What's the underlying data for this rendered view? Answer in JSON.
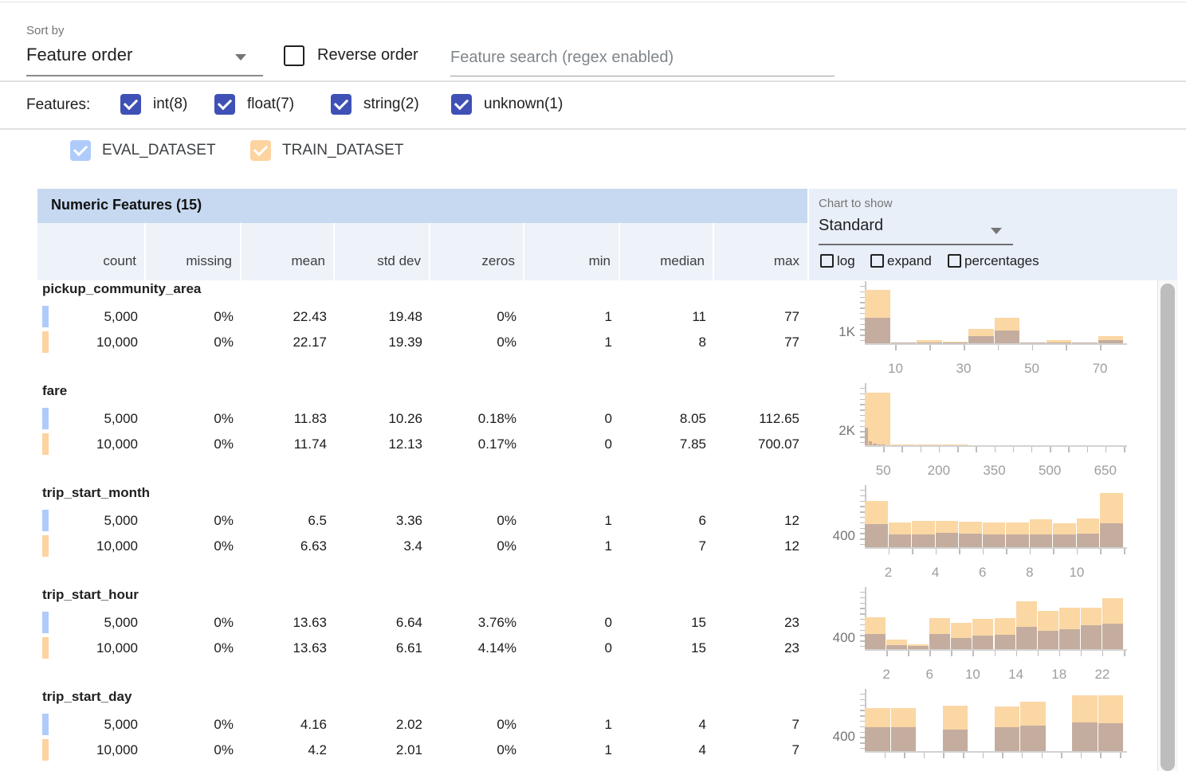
{
  "sort_bar": {
    "sort_by_label": "Sort by",
    "sort_by_value": "Feature order",
    "reverse_label": "Reverse order",
    "search_placeholder": "Feature search (regex enabled)"
  },
  "features_bar": {
    "label": "Features:",
    "types": [
      {
        "label": "int(8)",
        "checked": true
      },
      {
        "label": "float(7)",
        "checked": true
      },
      {
        "label": "string(2)",
        "checked": true
      },
      {
        "label": "unknown(1)",
        "checked": true
      }
    ]
  },
  "datasets": [
    {
      "name": "EVAL_DATASET",
      "checked": true,
      "color": "#aecbfa"
    },
    {
      "name": "TRAIN_DATASET",
      "checked": true,
      "color": "#fdd3a0"
    }
  ],
  "colors": {
    "type_checkbox": "#3f51b5",
    "eval": "#aecbfa",
    "train": "#fdd3a0",
    "overlap_bar": "#c4ad9e",
    "train_bar": "#fbd7a4",
    "title_band": "#c7d9f0",
    "header_row": "#eef2f9",
    "chart_panel": "#e9eff9"
  },
  "chart_controls": {
    "label": "Chart to show",
    "value": "Standard",
    "options": [
      {
        "label": "log",
        "checked": false
      },
      {
        "label": "expand",
        "checked": false
      },
      {
        "label": "percentages",
        "checked": false
      }
    ]
  },
  "table": {
    "title": "Numeric Features (15)",
    "columns": [
      "count",
      "missing",
      "mean",
      "std dev",
      "zeros",
      "min",
      "median",
      "max"
    ],
    "features": [
      {
        "name": "pickup_community_area",
        "rows": [
          {
            "dataset": "EVAL_DATASET",
            "values": [
              "5,000",
              "0%",
              "22.43",
              "19.48",
              "0%",
              "1",
              "11",
              "77"
            ]
          },
          {
            "dataset": "TRAIN_DATASET",
            "values": [
              "10,000",
              "0%",
              "22.17",
              "19.39",
              "0%",
              "1",
              "8",
              "77"
            ]
          }
        ]
      },
      {
        "name": "fare",
        "rows": [
          {
            "dataset": "EVAL_DATASET",
            "values": [
              "5,000",
              "0%",
              "11.83",
              "10.26",
              "0.18%",
              "0",
              "8.05",
              "112.65"
            ]
          },
          {
            "dataset": "TRAIN_DATASET",
            "values": [
              "10,000",
              "0%",
              "11.74",
              "12.13",
              "0.17%",
              "0",
              "7.85",
              "700.07"
            ]
          }
        ]
      },
      {
        "name": "trip_start_month",
        "rows": [
          {
            "dataset": "EVAL_DATASET",
            "values": [
              "5,000",
              "0%",
              "6.5",
              "3.36",
              "0%",
              "1",
              "6",
              "12"
            ]
          },
          {
            "dataset": "TRAIN_DATASET",
            "values": [
              "10,000",
              "0%",
              "6.63",
              "3.4",
              "0%",
              "1",
              "7",
              "12"
            ]
          }
        ]
      },
      {
        "name": "trip_start_hour",
        "rows": [
          {
            "dataset": "EVAL_DATASET",
            "values": [
              "5,000",
              "0%",
              "13.63",
              "6.64",
              "3.76%",
              "0",
              "15",
              "23"
            ]
          },
          {
            "dataset": "TRAIN_DATASET",
            "values": [
              "10,000",
              "0%",
              "13.63",
              "6.61",
              "4.14%",
              "0",
              "15",
              "23"
            ]
          }
        ]
      },
      {
        "name": "trip_start_day",
        "rows": [
          {
            "dataset": "EVAL_DATASET",
            "values": [
              "5,000",
              "0%",
              "4.16",
              "2.02",
              "0%",
              "1",
              "4",
              "7"
            ]
          },
          {
            "dataset": "TRAIN_DATASET",
            "values": [
              "10,000",
              "0%",
              "4.2",
              "2.01",
              "0%",
              "1",
              "4",
              "7"
            ]
          }
        ]
      }
    ]
  },
  "chart_data": [
    {
      "feature": "pickup_community_area",
      "type": "histogram_overlaid",
      "ylabel": "1K",
      "ylabel_value": 1000,
      "x_range": [
        1,
        77
      ],
      "x_tick_values": [
        10,
        20,
        30,
        40,
        50,
        60,
        70
      ],
      "x_label_values": [
        10,
        30,
        50,
        70
      ],
      "series": [
        {
          "name": "TRAIN_DATASET",
          "bin_min": 1,
          "bin_max": 77,
          "counts": [
            4800,
            70,
            290,
            140,
            1290,
            2290,
            70,
            290,
            70,
            640
          ]
        },
        {
          "name": "EVAL_DATASET",
          "bin_min": 1,
          "bin_max": 77,
          "counts": [
            2290,
            40,
            70,
            70,
            640,
            1140,
            40,
            70,
            40,
            290
          ]
        }
      ]
    },
    {
      "feature": "fare",
      "type": "histogram_overlaid",
      "ylabel": "2K",
      "ylabel_value": 2000,
      "x_range": [
        0,
        700
      ],
      "x_tick_values": [
        50,
        100,
        150,
        200,
        250,
        300,
        350,
        400,
        450,
        500,
        550,
        600,
        650,
        700
      ],
      "x_label_values": [
        50,
        200,
        350,
        500,
        650
      ],
      "series": [
        {
          "name": "TRAIN_DATASET",
          "bin_min": 0,
          "bin_max": 700,
          "counts": [
            7300,
            110,
            110,
            60,
            0,
            0,
            0,
            0,
            0,
            0
          ]
        },
        {
          "name": "EVAL_DATASET",
          "bin_min": 0,
          "bin_max": 112.65,
          "counts": [
            2440,
            560,
            220,
            110,
            60,
            0,
            0,
            0,
            0,
            0
          ]
        }
      ]
    },
    {
      "feature": "trip_start_month",
      "type": "histogram_overlaid",
      "ylabel": "400",
      "ylabel_value": 400,
      "x_range": [
        1,
        12
      ],
      "x_tick_values": [
        2,
        3,
        4,
        5,
        6,
        7,
        8,
        9,
        10,
        11,
        12
      ],
      "x_label_values": [
        2,
        4,
        6,
        8,
        10
      ],
      "series": [
        {
          "name": "TRAIN_DATASET",
          "bin_min": 1,
          "bin_max": 12,
          "counts": [
            1620,
            870,
            920,
            920,
            900,
            870,
            870,
            980,
            840,
            1010,
            1900
          ]
        },
        {
          "name": "EVAL_DATASET",
          "bin_min": 1,
          "bin_max": 12,
          "counts": [
            810,
            450,
            450,
            500,
            480,
            450,
            450,
            450,
            450,
            480,
            840
          ]
        }
      ]
    },
    {
      "feature": "trip_start_hour",
      "type": "histogram_overlaid",
      "ylabel": "400",
      "ylabel_value": 400,
      "x_range": [
        0,
        24
      ],
      "x_tick_values": [
        2,
        4,
        6,
        8,
        10,
        12,
        14,
        16,
        18,
        20,
        22,
        24
      ],
      "x_label_values": [
        2,
        6,
        10,
        14,
        18,
        22
      ],
      "series": [
        {
          "name": "TRAIN_DATASET",
          "bin_min": 0,
          "bin_max": 24,
          "counts": [
            1120,
            340,
            170,
            1090,
            920,
            1060,
            1090,
            1680,
            1340,
            1460,
            1460,
            1790
          ]
        },
        {
          "name": "EVAL_DATASET",
          "bin_min": 0,
          "bin_max": 24,
          "counts": [
            530,
            140,
            100,
            530,
            390,
            480,
            500,
            780,
            640,
            700,
            840,
            900
          ]
        }
      ]
    },
    {
      "feature": "trip_start_day",
      "type": "histogram_overlaid",
      "ylabel": "400",
      "ylabel_value": 400,
      "x_range": [
        1,
        7.6
      ],
      "x_tick_values": [
        1.5,
        2,
        2.5,
        3,
        3.5,
        4,
        4.5,
        5,
        5.5,
        6,
        6.5,
        7,
        7.5
      ],
      "x_label_values": [],
      "series": [
        {
          "name": "TRAIN_DATASET",
          "bin_min": 1,
          "bin_max": 7.6,
          "counts": [
            1220,
            1220,
            0,
            1290,
            0,
            1270,
            1400,
            0,
            1580,
            1580
          ]
        },
        {
          "name": "EVAL_DATASET",
          "bin_min": 1,
          "bin_max": 7.6,
          "counts": [
            680,
            680,
            0,
            610,
            0,
            680,
            720,
            0,
            810,
            790
          ]
        }
      ]
    }
  ]
}
